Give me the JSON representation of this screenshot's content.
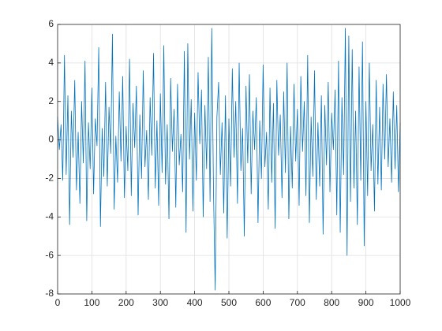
{
  "chart_data": {
    "type": "line",
    "color": "#0072bd",
    "grid": true,
    "xlim": [
      0,
      1000
    ],
    "ylim": [
      -8,
      6
    ],
    "xticks": [
      0,
      100,
      200,
      300,
      400,
      500,
      600,
      700,
      800,
      900,
      1000
    ],
    "yticks": [
      -8,
      -6,
      -4,
      -2,
      0,
      2,
      4,
      6
    ],
    "x": [
      0,
      5,
      10,
      15,
      20,
      25,
      30,
      35,
      40,
      45,
      50,
      55,
      60,
      65,
      70,
      75,
      80,
      85,
      90,
      95,
      100,
      105,
      110,
      115,
      120,
      125,
      130,
      135,
      140,
      145,
      150,
      155,
      160,
      165,
      170,
      175,
      180,
      185,
      190,
      195,
      200,
      205,
      210,
      215,
      220,
      225,
      230,
      235,
      240,
      245,
      250,
      255,
      260,
      265,
      270,
      275,
      280,
      285,
      290,
      295,
      300,
      305,
      310,
      315,
      320,
      325,
      330,
      335,
      340,
      345,
      350,
      355,
      360,
      365,
      370,
      375,
      380,
      385,
      390,
      395,
      400,
      405,
      410,
      415,
      420,
      425,
      430,
      435,
      440,
      445,
      450,
      455,
      460,
      465,
      470,
      475,
      480,
      485,
      490,
      495,
      500,
      505,
      510,
      515,
      520,
      525,
      530,
      535,
      540,
      545,
      550,
      555,
      560,
      565,
      570,
      575,
      580,
      585,
      590,
      595,
      600,
      605,
      610,
      615,
      620,
      625,
      630,
      635,
      640,
      645,
      650,
      655,
      660,
      665,
      670,
      675,
      680,
      685,
      690,
      695,
      700,
      705,
      710,
      715,
      720,
      725,
      730,
      735,
      740,
      745,
      750,
      755,
      760,
      765,
      770,
      775,
      780,
      785,
      790,
      795,
      800,
      805,
      810,
      815,
      820,
      825,
      830,
      835,
      840,
      845,
      850,
      855,
      860,
      865,
      870,
      875,
      880,
      885,
      890,
      895,
      900,
      905,
      910,
      915,
      920,
      925,
      930,
      935,
      940,
      945,
      950,
      955,
      960,
      965,
      970,
      975,
      980,
      985,
      990,
      995,
      1000
    ],
    "values": [
      1.2,
      -0.5,
      0.8,
      -2.1,
      4.4,
      -1.8,
      2.3,
      -4.4,
      1.5,
      -0.9,
      3.1,
      -2.6,
      0.4,
      -3.3,
      2.0,
      -1.2,
      4.1,
      -4.2,
      0.9,
      -1.5,
      2.7,
      -2.8,
      1.1,
      -0.3,
      4.8,
      -4.5,
      0.6,
      -1.9,
      3.0,
      -2.4,
      1.7,
      -0.7,
      5.5,
      -3.6,
      0.2,
      -2.2,
      2.5,
      -1.1,
      3.3,
      -3.0,
      0.7,
      -1.6,
      4.2,
      -2.9,
      1.9,
      -0.4,
      2.8,
      -3.9,
      1.3,
      -2.0,
      3.6,
      -1.4,
      0.5,
      -3.1,
      2.2,
      -0.8,
      4.5,
      -2.5,
      1.0,
      -3.4,
      2.4,
      -1.7,
      4.9,
      -2.3,
      0.8,
      -4.1,
      3.2,
      -0.6,
      1.6,
      -3.5,
      2.9,
      -1.3,
      0.3,
      -2.7,
      4.6,
      -4.8,
      5.0,
      -1.0,
      2.1,
      -3.7,
      1.4,
      -2.1,
      3.5,
      -0.2,
      2.6,
      -4.0,
      1.8,
      -1.5,
      4.3,
      -3.2,
      5.8,
      -2.6,
      -7.8,
      1.2,
      3.0,
      -1.8,
      0.9,
      -3.8,
      2.3,
      -5.1,
      1.1,
      -2.4,
      3.7,
      -0.9,
      2.0,
      -3.3,
      4.0,
      -1.6,
      0.6,
      -5.0,
      2.8,
      -1.2,
      3.4,
      -2.8,
      1.5,
      -0.5,
      2.2,
      -4.3,
      1.0,
      -2.0,
      3.9,
      -1.4,
      0.4,
      -3.6,
      2.7,
      -2.2,
      1.9,
      -4.6,
      3.1,
      -0.8,
      1.3,
      -3.0,
      2.5,
      -1.7,
      4.0,
      -4.1,
      0.7,
      -2.5,
      2.9,
      -1.1,
      1.6,
      -3.4,
      3.3,
      -0.6,
      2.0,
      -2.9,
      4.4,
      -4.3,
      1.2,
      -1.9,
      3.6,
      -3.1,
      0.9,
      -2.4,
      2.3,
      -4.9,
      1.8,
      -1.3,
      3.0,
      -2.7,
      1.4,
      -0.5,
      2.6,
      -3.9,
      4.1,
      -4.8,
      2.2,
      -1.8,
      5.8,
      -6.0,
      5.4,
      -3.2,
      4.7,
      -2.5,
      1.5,
      -4.4,
      3.8,
      -2.1,
      5.1,
      -5.5,
      2.0,
      -2.9,
      4.0,
      -1.6,
      0.8,
      -3.7,
      3.1,
      -2.3,
      1.7,
      -2.6,
      2.9,
      -1.0,
      3.4,
      -1.4,
      1.1,
      -2.2,
      2.5,
      -1.5,
      1.8,
      -2.7,
      0.9
    ]
  }
}
